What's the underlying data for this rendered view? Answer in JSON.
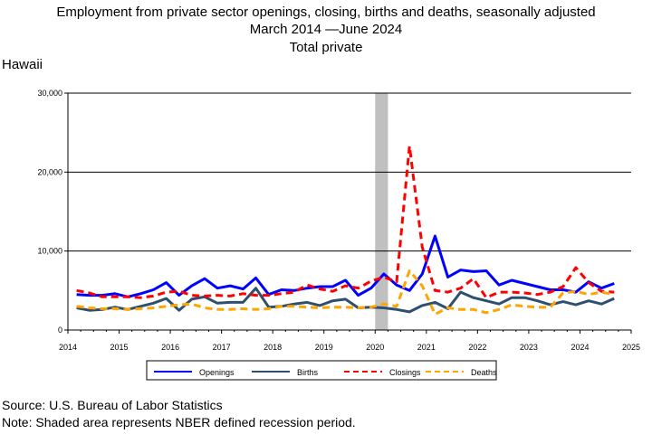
{
  "header": {
    "title_line1": "Employment from private sector openings, closing, births and deaths, seasonally adjusted",
    "title_line2_start": "March 2014",
    "title_line2_end": "June 2024",
    "title_line3": "Total private",
    "region": "Hawaii"
  },
  "footer": {
    "source": "Source: U.S. Bureau of Labor Statistics",
    "note": "Note: Shaded area represents NBER defined recession period."
  },
  "chart_data": {
    "type": "line",
    "x_tick_labels": [
      "2014",
      "2015",
      "2016",
      "2017",
      "2018",
      "2019",
      "2020",
      "2021",
      "2022",
      "2023",
      "2024",
      "2025"
    ],
    "y_tick_labels": [
      "0",
      "10,000",
      "20,000",
      "30,000"
    ],
    "xlim": [
      2014,
      2025
    ],
    "ylim": [
      0,
      30000
    ],
    "y_gridlines": [
      10000,
      20000,
      30000
    ],
    "recession": {
      "start": 2020.0,
      "end": 2020.25,
      "color": "#c0c0c0"
    },
    "legend_position": "bottom",
    "series": [
      {
        "name": "Openings",
        "color": "#0000ff",
        "dash": "solid",
        "width": 3,
        "points": [
          [
            2014.17,
            4500
          ],
          [
            2014.42,
            4400
          ],
          [
            2014.67,
            4400
          ],
          [
            2014.92,
            4600
          ],
          [
            2015.17,
            4200
          ],
          [
            2015.42,
            4600
          ],
          [
            2015.67,
            5100
          ],
          [
            2015.92,
            6000
          ],
          [
            2016.17,
            4400
          ],
          [
            2016.42,
            5600
          ],
          [
            2016.67,
            6500
          ],
          [
            2016.92,
            5300
          ],
          [
            2017.17,
            5600
          ],
          [
            2017.42,
            5200
          ],
          [
            2017.67,
            6600
          ],
          [
            2017.92,
            4500
          ],
          [
            2018.17,
            5100
          ],
          [
            2018.42,
            5000
          ],
          [
            2018.67,
            5300
          ],
          [
            2018.92,
            5500
          ],
          [
            2019.17,
            5500
          ],
          [
            2019.42,
            6300
          ],
          [
            2019.67,
            4400
          ],
          [
            2019.92,
            5300
          ],
          [
            2020.17,
            7100
          ],
          [
            2020.42,
            5700
          ],
          [
            2020.67,
            5000
          ],
          [
            2020.92,
            7100
          ],
          [
            2021.17,
            11900
          ],
          [
            2021.42,
            6700
          ],
          [
            2021.67,
            7600
          ],
          [
            2021.92,
            7400
          ],
          [
            2022.17,
            7500
          ],
          [
            2022.42,
            5700
          ],
          [
            2022.67,
            6300
          ],
          [
            2022.92,
            5900
          ],
          [
            2023.17,
            5500
          ],
          [
            2023.42,
            5100
          ],
          [
            2023.67,
            5100
          ],
          [
            2023.92,
            4800
          ],
          [
            2024.17,
            6100
          ],
          [
            2024.42,
            5300
          ],
          [
            2024.67,
            5900
          ]
        ]
      },
      {
        "name": "Births",
        "color": "#2f4f6f",
        "dash": "solid",
        "width": 3,
        "points": [
          [
            2014.17,
            2800
          ],
          [
            2014.42,
            2500
          ],
          [
            2014.67,
            2600
          ],
          [
            2014.92,
            2900
          ],
          [
            2015.17,
            2600
          ],
          [
            2015.42,
            3000
          ],
          [
            2015.67,
            3400
          ],
          [
            2015.92,
            4000
          ],
          [
            2016.17,
            2500
          ],
          [
            2016.42,
            3900
          ],
          [
            2016.67,
            4200
          ],
          [
            2016.92,
            3400
          ],
          [
            2017.17,
            3500
          ],
          [
            2017.42,
            3500
          ],
          [
            2017.67,
            5300
          ],
          [
            2017.92,
            2900
          ],
          [
            2018.17,
            3000
          ],
          [
            2018.42,
            3300
          ],
          [
            2018.67,
            3500
          ],
          [
            2018.92,
            3100
          ],
          [
            2019.17,
            3700
          ],
          [
            2019.42,
            3900
          ],
          [
            2019.67,
            2800
          ],
          [
            2019.92,
            2900
          ],
          [
            2020.17,
            2800
          ],
          [
            2020.42,
            2600
          ],
          [
            2020.67,
            2300
          ],
          [
            2020.92,
            3100
          ],
          [
            2021.17,
            3500
          ],
          [
            2021.42,
            2700
          ],
          [
            2021.67,
            4800
          ],
          [
            2021.92,
            4100
          ],
          [
            2022.17,
            3700
          ],
          [
            2022.42,
            3300
          ],
          [
            2022.67,
            4100
          ],
          [
            2022.92,
            4100
          ],
          [
            2023.17,
            3700
          ],
          [
            2023.42,
            3200
          ],
          [
            2023.67,
            3600
          ],
          [
            2023.92,
            3200
          ],
          [
            2024.17,
            3700
          ],
          [
            2024.42,
            3300
          ],
          [
            2024.67,
            4000
          ]
        ]
      },
      {
        "name": "Closings",
        "color": "#ff0000",
        "dash": "8,5",
        "width": 3,
        "points": [
          [
            2014.17,
            5000
          ],
          [
            2014.42,
            4700
          ],
          [
            2014.67,
            4200
          ],
          [
            2014.92,
            4200
          ],
          [
            2015.17,
            4200
          ],
          [
            2015.42,
            4100
          ],
          [
            2015.67,
            4300
          ],
          [
            2015.92,
            4800
          ],
          [
            2016.17,
            4900
          ],
          [
            2016.42,
            4400
          ],
          [
            2016.67,
            4300
          ],
          [
            2016.92,
            4400
          ],
          [
            2017.17,
            4300
          ],
          [
            2017.42,
            4600
          ],
          [
            2017.67,
            4400
          ],
          [
            2017.92,
            4400
          ],
          [
            2018.17,
            4600
          ],
          [
            2018.42,
            4800
          ],
          [
            2018.67,
            5700
          ],
          [
            2018.92,
            5200
          ],
          [
            2019.17,
            4900
          ],
          [
            2019.42,
            5600
          ],
          [
            2019.67,
            5300
          ],
          [
            2019.92,
            6200
          ],
          [
            2020.17,
            6700
          ],
          [
            2020.42,
            6100
          ],
          [
            2020.67,
            23300
          ],
          [
            2020.92,
            10500
          ],
          [
            2021.17,
            5000
          ],
          [
            2021.42,
            4800
          ],
          [
            2021.67,
            5300
          ],
          [
            2021.92,
            6500
          ],
          [
            2022.17,
            4100
          ],
          [
            2022.42,
            4800
          ],
          [
            2022.67,
            4800
          ],
          [
            2022.92,
            4700
          ],
          [
            2023.17,
            4500
          ],
          [
            2023.42,
            4800
          ],
          [
            2023.67,
            5500
          ],
          [
            2023.92,
            7900
          ],
          [
            2024.17,
            6000
          ],
          [
            2024.42,
            4900
          ],
          [
            2024.67,
            4800
          ]
        ]
      },
      {
        "name": "Deaths",
        "color": "#ffa500",
        "dash": "8,5",
        "width": 3,
        "points": [
          [
            2014.17,
            3000
          ],
          [
            2014.42,
            2800
          ],
          [
            2014.67,
            2700
          ],
          [
            2014.92,
            2700
          ],
          [
            2015.17,
            2600
          ],
          [
            2015.42,
            2700
          ],
          [
            2015.67,
            2800
          ],
          [
            2015.92,
            3000
          ],
          [
            2016.17,
            3200
          ],
          [
            2016.42,
            3300
          ],
          [
            2016.67,
            2800
          ],
          [
            2016.92,
            2600
          ],
          [
            2017.17,
            2600
          ],
          [
            2017.42,
            2700
          ],
          [
            2017.67,
            2600
          ],
          [
            2017.92,
            2700
          ],
          [
            2018.17,
            3000
          ],
          [
            2018.42,
            3000
          ],
          [
            2018.67,
            2900
          ],
          [
            2018.92,
            2800
          ],
          [
            2019.17,
            2900
          ],
          [
            2019.42,
            2900
          ],
          [
            2019.67,
            2800
          ],
          [
            2019.92,
            2900
          ],
          [
            2020.17,
            3300
          ],
          [
            2020.42,
            3000
          ],
          [
            2020.67,
            7500
          ],
          [
            2020.92,
            5600
          ],
          [
            2021.17,
            2000
          ],
          [
            2021.42,
            2800
          ],
          [
            2021.67,
            2600
          ],
          [
            2021.92,
            2600
          ],
          [
            2022.17,
            2200
          ],
          [
            2022.42,
            2600
          ],
          [
            2022.67,
            3200
          ],
          [
            2022.92,
            3000
          ],
          [
            2023.17,
            2900
          ],
          [
            2023.42,
            2900
          ],
          [
            2023.67,
            4700
          ],
          [
            2023.92,
            4900
          ],
          [
            2024.17,
            4500
          ],
          [
            2024.42,
            4800
          ],
          [
            2024.67,
            4500
          ]
        ]
      }
    ]
  }
}
